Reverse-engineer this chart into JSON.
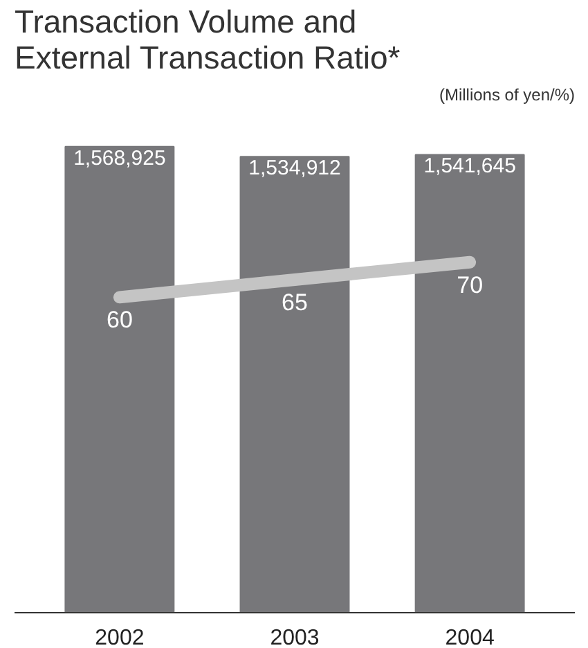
{
  "chart_data": {
    "type": "bar",
    "title": "Transaction Volume and\nExternal Transaction Ratio*",
    "subtitle": "(Millions of yen/%)",
    "categories": [
      "2002",
      "2003",
      "2004"
    ],
    "series": [
      {
        "color": "#77777a",
        "values": [
          1568925,
          1534912,
          1541645
        ],
        "value_labels": [
          "1,568,925",
          "1,534,912",
          "1,541,645"
        ]
      },
      {
        "type": "line",
        "axis": "y2",
        "color": "#c4c4c4",
        "values": [
          60,
          65,
          70
        ]
      }
    ],
    "data_labels": true,
    "tick_labels": "x",
    "marker": "none",
    "line_style": "solid"
  }
}
